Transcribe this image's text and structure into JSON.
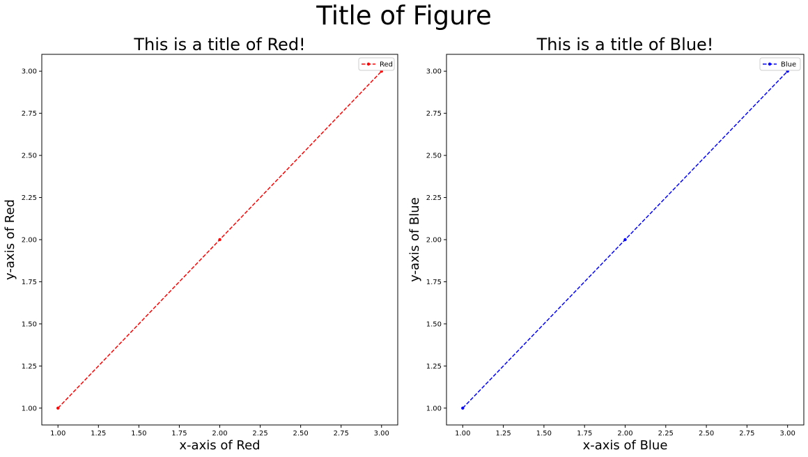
{
  "figure": {
    "title": "Title of Figure"
  },
  "chart_data": [
    {
      "type": "line",
      "title": "This is a title of Red!",
      "xlabel": "x-axis of Red",
      "ylabel": "y-axis of Red",
      "xlim": [
        0.9,
        3.1
      ],
      "ylim": [
        0.9,
        3.1
      ],
      "xticks": [
        "1.00",
        "1.25",
        "1.50",
        "1.75",
        "2.00",
        "2.25",
        "2.50",
        "2.75",
        "3.00"
      ],
      "yticks": [
        "1.00",
        "1.25",
        "1.50",
        "1.75",
        "2.00",
        "2.25",
        "2.50",
        "2.75",
        "3.00"
      ],
      "legend": "top-right",
      "grid": false,
      "series": [
        {
          "name": "Red",
          "color": "#ff0000",
          "linestyle": "dashed",
          "marker": "point",
          "x": [
            1,
            2,
            3
          ],
          "y": [
            1,
            2,
            3
          ]
        }
      ]
    },
    {
      "type": "line",
      "title": "This is a title of Blue!",
      "xlabel": "x-axis of Blue",
      "ylabel": "y-axis of Blue",
      "xlim": [
        0.9,
        3.1
      ],
      "ylim": [
        0.9,
        3.1
      ],
      "xticks": [
        "1.00",
        "1.25",
        "1.50",
        "1.75",
        "2.00",
        "2.25",
        "2.50",
        "2.75",
        "3.00"
      ],
      "yticks": [
        "1.00",
        "1.25",
        "1.50",
        "1.75",
        "2.00",
        "2.25",
        "2.50",
        "2.75",
        "3.00"
      ],
      "legend": "top-right",
      "grid": false,
      "series": [
        {
          "name": "Blue",
          "color": "#0000ff",
          "linestyle": "dashed",
          "marker": "point",
          "x": [
            1,
            2,
            3
          ],
          "y": [
            1,
            2,
            3
          ]
        }
      ]
    }
  ]
}
